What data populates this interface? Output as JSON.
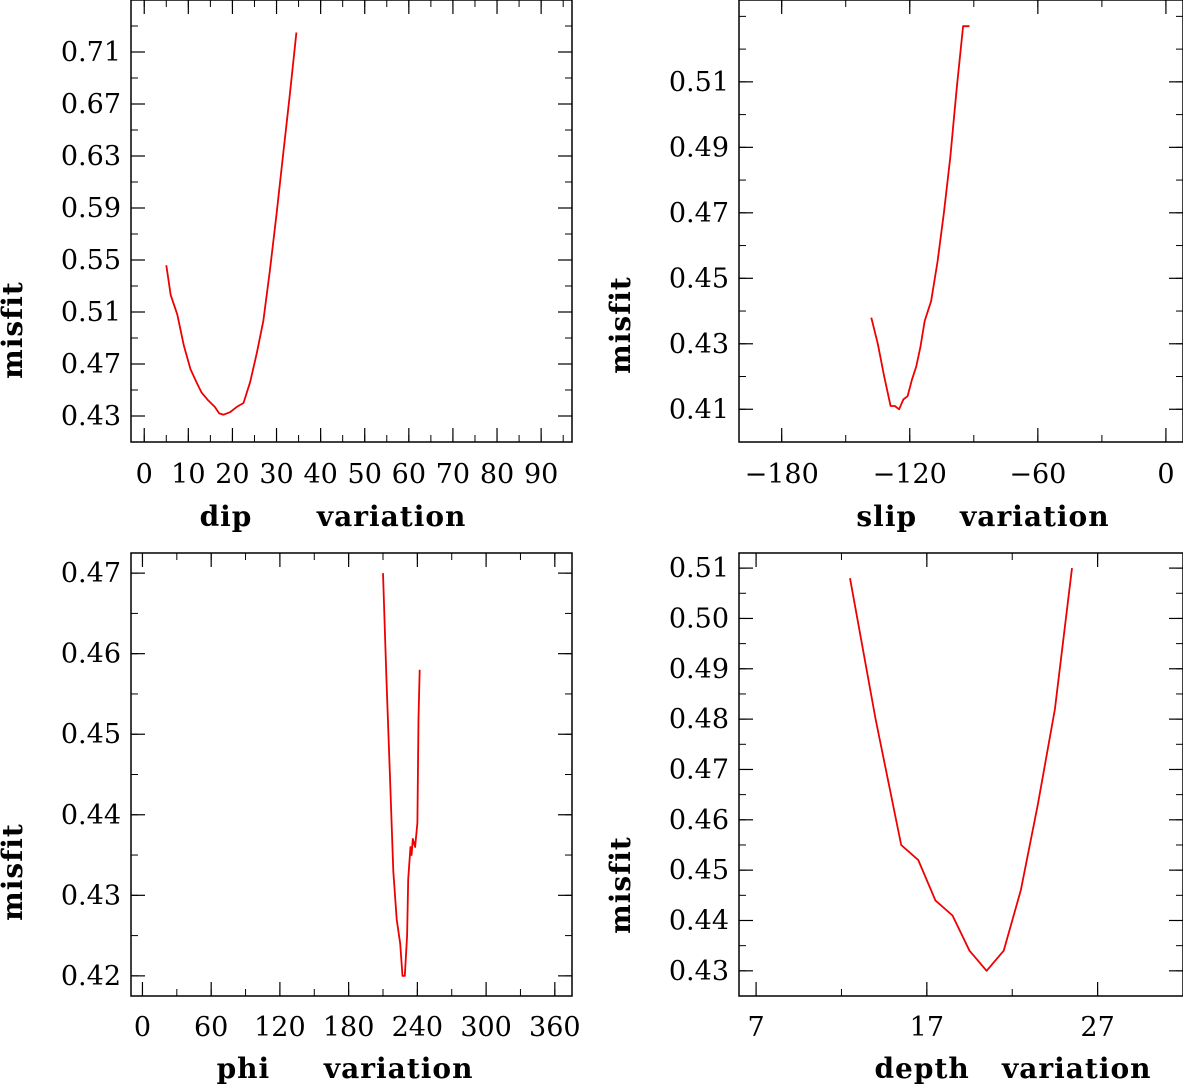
{
  "chart_data": [
    {
      "type": "line",
      "xlabel": "dip      variation",
      "ylabel": "misfit",
      "xlim": [
        -3,
        97
      ],
      "ylim": [
        0.41,
        0.75
      ],
      "xticks": [
        0,
        10,
        20,
        30,
        40,
        50,
        60,
        70,
        80,
        90
      ],
      "xtick_labels": [
        "0",
        "10",
        "20",
        "30",
        "40",
        "50",
        "60",
        "70",
        "80",
        "90"
      ],
      "yticks": [
        0.43,
        0.47,
        0.51,
        0.55,
        0.59,
        0.63,
        0.67,
        0.71
      ],
      "ytick_labels": [
        "0.43",
        "0.47",
        "0.51",
        "0.55",
        "0.59",
        "0.63",
        "0.67",
        "0.71"
      ],
      "color": "#ee0000",
      "x": [
        5,
        6,
        7.5,
        9,
        10.5,
        12,
        13,
        14.5,
        16,
        17,
        18,
        19.5,
        21,
        22.5,
        24,
        25.5,
        27,
        28.5,
        30,
        31.5,
        33,
        34.5
      ],
      "y": [
        0.546,
        0.523,
        0.508,
        0.484,
        0.466,
        0.455,
        0.448,
        0.442,
        0.437,
        0.432,
        0.431,
        0.433,
        0.437,
        0.44,
        0.456,
        0.478,
        0.503,
        0.542,
        0.585,
        0.631,
        0.677,
        0.725
      ]
    },
    {
      "type": "line",
      "xlabel": "slip    variation",
      "ylabel": "misfit",
      "xlim": [
        -200,
        8
      ],
      "ylim": [
        0.4,
        0.535
      ],
      "xticks": [
        -180,
        -120,
        -60,
        0
      ],
      "xtick_labels": [
        "−180",
        "−120",
        "−60",
        "0"
      ],
      "yticks": [
        0.41,
        0.43,
        0.45,
        0.47,
        0.49,
        0.51
      ],
      "ytick_labels": [
        "0.41",
        "0.43",
        "0.45",
        "0.47",
        "0.49",
        "0.51"
      ],
      "color": "#ee0000",
      "x": [
        -138,
        -135,
        -132,
        -129,
        -127,
        -125,
        -123,
        -121,
        -119,
        -117,
        -115,
        -113,
        -110,
        -107,
        -104,
        -101,
        -98,
        -95,
        -92
      ],
      "y": [
        0.438,
        0.43,
        0.42,
        0.411,
        0.411,
        0.41,
        0.413,
        0.414,
        0.419,
        0.423,
        0.429,
        0.437,
        0.443,
        0.455,
        0.47,
        0.487,
        0.508,
        0.527,
        0.527
      ]
    },
    {
      "type": "line",
      "xlabel": "phi     variation",
      "ylabel": "misfit",
      "xlim": [
        -10,
        375
      ],
      "ylim": [
        0.4175,
        0.4725
      ],
      "xticks": [
        0,
        60,
        120,
        180,
        240,
        300,
        360
      ],
      "xtick_labels": [
        "0",
        "60",
        "120",
        "180",
        "240",
        "300",
        "360"
      ],
      "yticks": [
        0.42,
        0.43,
        0.44,
        0.45,
        0.46,
        0.47
      ],
      "ytick_labels": [
        "0.42",
        "0.43",
        "0.44",
        "0.45",
        "0.46",
        "0.47"
      ],
      "color": "#ee0000",
      "x": [
        210,
        213,
        216,
        219,
        222,
        225,
        227,
        229,
        231,
        232,
        234,
        235,
        236,
        238,
        240,
        241,
        242
      ],
      "y": [
        0.47,
        0.457,
        0.445,
        0.433,
        0.427,
        0.424,
        0.42,
        0.42,
        0.425,
        0.432,
        0.436,
        0.435,
        0.437,
        0.436,
        0.439,
        0.452,
        0.458
      ]
    },
    {
      "type": "line",
      "xlabel": "depth   variation",
      "ylabel": "misfit",
      "xlim": [
        6,
        32
      ],
      "ylim": [
        0.425,
        0.513
      ],
      "xticks": [
        7,
        17,
        27
      ],
      "xtick_labels": [
        "7",
        "17",
        "27"
      ],
      "yticks": [
        0.43,
        0.44,
        0.45,
        0.46,
        0.47,
        0.48,
        0.49,
        0.5,
        0.51
      ],
      "ytick_labels": [
        "0.43",
        "0.44",
        "0.45",
        "0.46",
        "0.47",
        "0.48",
        "0.49",
        "0.50",
        "0.51"
      ],
      "color": "#ee0000",
      "x": [
        12.5,
        14,
        15.5,
        16.5,
        17.5,
        18.5,
        19.5,
        20.5,
        21.5,
        22.5,
        23.5,
        24.5,
        25.5
      ],
      "y": [
        0.508,
        0.48,
        0.455,
        0.452,
        0.444,
        0.441,
        0.434,
        0.43,
        0.434,
        0.446,
        0.463,
        0.482,
        0.51
      ]
    }
  ]
}
